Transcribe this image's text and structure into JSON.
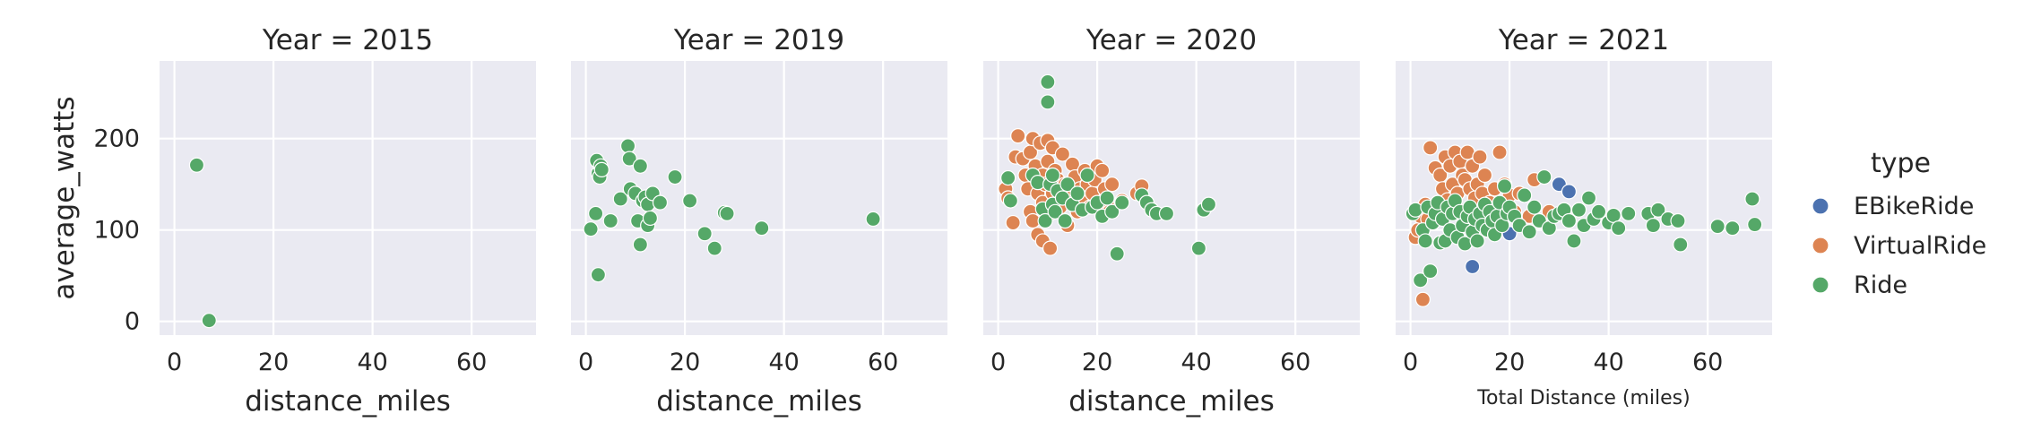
{
  "chart_data": {
    "type": "scatter",
    "ylabel": "average_watts",
    "ylim": [
      -15,
      285
    ],
    "yticks": [
      0,
      100,
      200
    ],
    "xlim": [
      -3,
      73
    ],
    "xticks": [
      0,
      20,
      40,
      60
    ],
    "legend": {
      "title": "type",
      "placement": "right",
      "entries": [
        {
          "name": "EBikeRide",
          "color": "#4c72b0"
        },
        {
          "name": "VirtualRide",
          "color": "#dd8452"
        },
        {
          "name": "Ride",
          "color": "#55a868"
        }
      ]
    },
    "panels": [
      {
        "title": "Year = 2015",
        "xlabel": "distance_miles",
        "series": [
          {
            "name": "Ride",
            "points": [
              [
                4.5,
                171
              ],
              [
                7,
                1
              ]
            ]
          }
        ]
      },
      {
        "title": "Year = 2019",
        "xlabel": "distance_miles",
        "series": [
          {
            "name": "Ride",
            "points": [
              [
                1,
                101
              ],
              [
                2,
                118
              ],
              [
                2.2,
                176
              ],
              [
                2.5,
                162
              ],
              [
                3,
                170
              ],
              [
                2.8,
                158
              ],
              [
                3.2,
                166
              ],
              [
                2.5,
                51
              ],
              [
                5,
                110
              ],
              [
                7,
                134
              ],
              [
                8.5,
                192
              ],
              [
                8.8,
                178
              ],
              [
                9,
                145
              ],
              [
                10,
                140
              ],
              [
                10.5,
                110
              ],
              [
                11,
                84
              ],
              [
                11,
                170
              ],
              [
                11.5,
                132
              ],
              [
                12,
                136
              ],
              [
                12.5,
                128
              ],
              [
                12.5,
                105
              ],
              [
                13,
                113
              ],
              [
                13.5,
                140
              ],
              [
                15,
                130
              ],
              [
                18,
                158
              ],
              [
                21,
                132
              ],
              [
                24,
                96
              ],
              [
                26,
                80
              ],
              [
                28,
                119
              ],
              [
                28.5,
                118
              ],
              [
                35.5,
                102
              ],
              [
                58,
                112
              ]
            ]
          }
        ]
      },
      {
        "title": "Year = 2020",
        "xlabel": "distance_miles",
        "series": [
          {
            "name": "VirtualRide",
            "points": [
              [
                1.5,
                145
              ],
              [
                2,
                135
              ],
              [
                3,
                108
              ],
              [
                3.5,
                180
              ],
              [
                4,
                203
              ],
              [
                5,
                178
              ],
              [
                5.5,
                160
              ],
              [
                6,
                145
              ],
              [
                6.5,
                120
              ],
              [
                6.5,
                185
              ],
              [
                7,
                200
              ],
              [
                7,
                110
              ],
              [
                7.5,
                170
              ],
              [
                8,
                140
              ],
              [
                8,
                95
              ],
              [
                8.5,
                195
              ],
              [
                9,
                160
              ],
              [
                9,
                130
              ],
              [
                9,
                88
              ],
              [
                9.5,
                150
              ],
              [
                10,
                198
              ],
              [
                10,
                175
              ],
              [
                10.5,
                118
              ],
              [
                10.5,
                80
              ],
              [
                11,
                190
              ],
              [
                11,
                140
              ],
              [
                11.5,
                165
              ],
              [
                12,
                155
              ],
              [
                12.5,
                125
              ],
              [
                13,
                183
              ],
              [
                13.5,
                150
              ],
              [
                14,
                105
              ],
              [
                14.5,
                135
              ],
              [
                15,
                172
              ],
              [
                15.5,
                158
              ],
              [
                16,
                120
              ],
              [
                16.5,
                145
              ],
              [
                17,
                130
              ],
              [
                17.5,
                165
              ],
              [
                18,
                150
              ],
              [
                18.5,
                125
              ],
              [
                19,
                140
              ],
              [
                19.5,
                155
              ],
              [
                20,
                170
              ],
              [
                21,
                165
              ],
              [
                21.5,
                145
              ],
              [
                22,
                128
              ],
              [
                22.5,
                120
              ],
              [
                23,
                150
              ],
              [
                25,
                132
              ],
              [
                28,
                140
              ],
              [
                29,
                148
              ],
              [
                30,
                130
              ]
            ]
          },
          {
            "name": "Ride",
            "points": [
              [
                2,
                157
              ],
              [
                2.5,
                132
              ],
              [
                7,
                160
              ],
              [
                8,
                152
              ],
              [
                9,
                123
              ],
              [
                9.5,
                110
              ],
              [
                10,
                262
              ],
              [
                10,
                240
              ],
              [
                10.5,
                150
              ],
              [
                11,
                160
              ],
              [
                11,
                128
              ],
              [
                11.5,
                120
              ],
              [
                12,
                143
              ],
              [
                13,
                135
              ],
              [
                13.5,
                110
              ],
              [
                14,
                150
              ],
              [
                15,
                128
              ],
              [
                16,
                140
              ],
              [
                17,
                122
              ],
              [
                18,
                160
              ],
              [
                19,
                125
              ],
              [
                20,
                130
              ],
              [
                21,
                115
              ],
              [
                22,
                135
              ],
              [
                23,
                120
              ],
              [
                24,
                74
              ],
              [
                25,
                130
              ],
              [
                29,
                138
              ],
              [
                30,
                130
              ],
              [
                31,
                122
              ],
              [
                32,
                118
              ],
              [
                34,
                118
              ],
              [
                40.5,
                80
              ],
              [
                41.5,
                122
              ],
              [
                42.5,
                128
              ]
            ]
          }
        ]
      },
      {
        "title": "Year = 2021",
        "xlabel": "Total Distance (miles)",
        "series": [
          {
            "name": "EBikeRide",
            "points": [
              [
                12.5,
                60
              ],
              [
                20,
                96
              ],
              [
                30,
                150
              ],
              [
                32,
                142
              ]
            ]
          },
          {
            "name": "VirtualRide",
            "points": [
              [
                1,
                92
              ],
              [
                1.5,
                100
              ],
              [
                2,
                115
              ],
              [
                2.5,
                24
              ],
              [
                3,
                128
              ],
              [
                3.5,
                112
              ],
              [
                4,
                190
              ],
              [
                5,
                168
              ],
              [
                5.5,
                122
              ],
              [
                6,
                160
              ],
              [
                6.5,
                145
              ],
              [
                7,
                180
              ],
              [
                7.5,
                133
              ],
              [
                8,
                170
              ],
              [
                8.5,
                150
              ],
              [
                9,
                185
              ],
              [
                9.5,
                140
              ],
              [
                10,
                175
              ],
              [
                10.5,
                160
              ],
              [
                11,
                155
              ],
              [
                11.5,
                185
              ],
              [
                12,
                145
              ],
              [
                12.5,
                170
              ],
              [
                13,
                135
              ],
              [
                13.5,
                150
              ],
              [
                14,
                180
              ],
              [
                14.5,
                140
              ],
              [
                15,
                160
              ],
              [
                16,
                130
              ],
              [
                17,
                145
              ],
              [
                18,
                185
              ],
              [
                19,
                150
              ],
              [
                20,
                138
              ],
              [
                21,
                120
              ],
              [
                22,
                140
              ],
              [
                24,
                115
              ],
              [
                25,
                155
              ],
              [
                28,
                120
              ]
            ]
          },
          {
            "name": "Ride",
            "points": [
              [
                0.5,
                118
              ],
              [
                1,
                122
              ],
              [
                2,
                45
              ],
              [
                2.5,
                100
              ],
              [
                3,
                88
              ],
              [
                3.5,
                125
              ],
              [
                4,
                55
              ],
              [
                4.5,
                108
              ],
              [
                5,
                118
              ],
              [
                5.5,
                130
              ],
              [
                6,
                86
              ],
              [
                6.5,
                112
              ],
              [
                7,
                88
              ],
              [
                7.5,
                125
              ],
              [
                8,
                100
              ],
              [
                8.5,
                118
              ],
              [
                9,
                132
              ],
              [
                9.5,
                92
              ],
              [
                10,
                120
              ],
              [
                10.5,
                105
              ],
              [
                11,
                85
              ],
              [
                11.5,
                115
              ],
              [
                12,
                125
              ],
              [
                12.5,
                98
              ],
              [
                13,
                112
              ],
              [
                13.5,
                88
              ],
              [
                14,
                118
              ],
              [
                14.5,
                105
              ],
              [
                15,
                128
              ],
              [
                15.5,
                100
              ],
              [
                16,
                120
              ],
              [
                16.5,
                110
              ],
              [
                17,
                95
              ],
              [
                17.5,
                115
              ],
              [
                18,
                130
              ],
              [
                18.5,
                105
              ],
              [
                19,
                148
              ],
              [
                19.5,
                118
              ],
              [
                20,
                125
              ],
              [
                21,
                115
              ],
              [
                22,
                105
              ],
              [
                23,
                138
              ],
              [
                24,
                98
              ],
              [
                25,
                125
              ],
              [
                26,
                110
              ],
              [
                27,
                158
              ],
              [
                28,
                102
              ],
              [
                29,
                115
              ],
              [
                30,
                118
              ],
              [
                31,
                122
              ],
              [
                32,
                110
              ],
              [
                33,
                88
              ],
              [
                34,
                122
              ],
              [
                35,
                105
              ],
              [
                36,
                135
              ],
              [
                37,
                112
              ],
              [
                38,
                120
              ],
              [
                40,
                108
              ],
              [
                41,
                116
              ],
              [
                42,
                102
              ],
              [
                44,
                118
              ],
              [
                48,
                118
              ],
              [
                49,
                105
              ],
              [
                50,
                122
              ],
              [
                52,
                112
              ],
              [
                54,
                110
              ],
              [
                54.5,
                84
              ],
              [
                62,
                104
              ],
              [
                65,
                102
              ],
              [
                69,
                134
              ],
              [
                69.5,
                106
              ]
            ]
          }
        ]
      }
    ]
  }
}
